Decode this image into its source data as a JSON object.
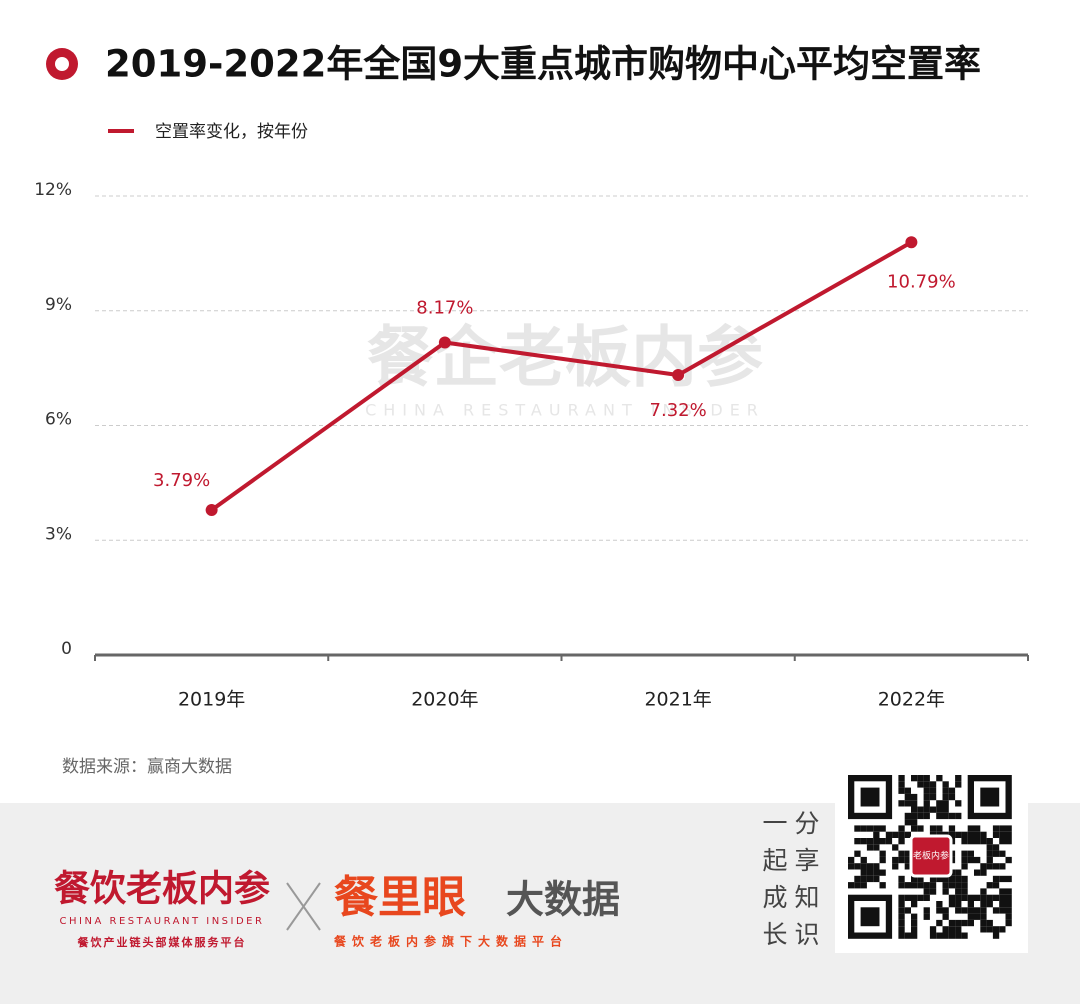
{
  "chart_data": {
    "type": "line",
    "title": "2019-2022年全国9大重点城市购物中心平均空置率",
    "categories": [
      "2019年",
      "2020年",
      "2021年",
      "2022年"
    ],
    "series": [
      {
        "name": "空置率变化，按年份",
        "color": "#c0192f",
        "values": [
          3.79,
          8.17,
          7.32,
          10.79
        ],
        "value_labels": [
          "3.79%",
          "8.17%",
          "7.32%",
          "10.79%"
        ]
      }
    ],
    "ylim": [
      0,
      12
    ],
    "yticks": [
      0,
      {
        "value": 3,
        "label": "3%"
      },
      {
        "value": 6,
        "label": "6%"
      },
      {
        "value": 9,
        "label": "9%"
      },
      {
        "value": 12,
        "label": "12%"
      }
    ],
    "grid": true,
    "source": "数据来源：赢商大数据"
  },
  "watermark": {
    "name": "餐企老板内参",
    "subtitle": "CHINA RESTAURANT INSIDER"
  },
  "footer": {
    "brand1": {
      "name": "餐饮老板内参",
      "subtitle": "CHINA RESTAURANT INSIDER",
      "slogan": "餐饮产业链头部媒体服务平台"
    },
    "brand2": {
      "name": "餐里眼",
      "suffix": "大数据",
      "slogan": "餐饮老板内参旗下大数据平台"
    },
    "share": [
      "一起成长",
      "分享知识"
    ],
    "qr_badge": "老板内参"
  }
}
